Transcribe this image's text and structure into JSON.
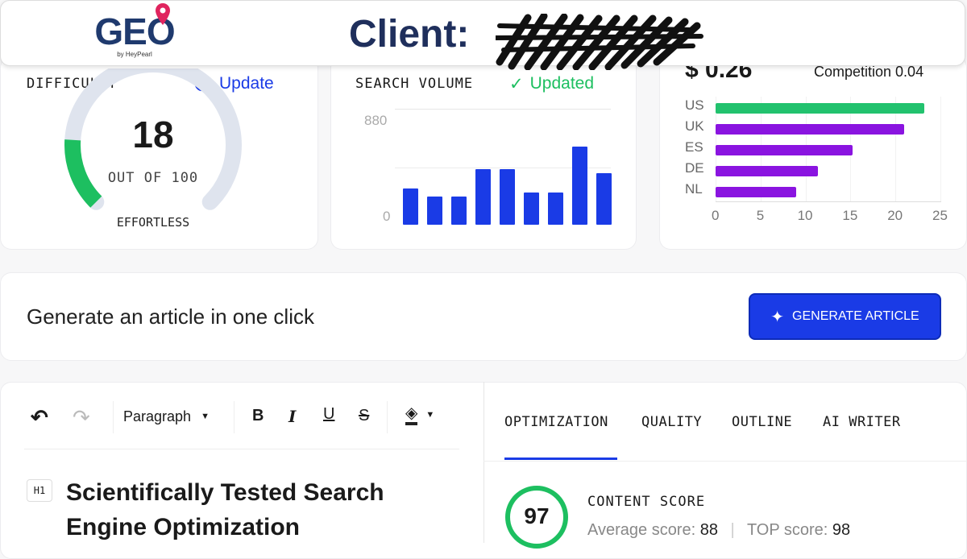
{
  "header": {
    "logo_text": "GEO",
    "logo_sub": "by HeyPearl",
    "client_label": "Client:"
  },
  "difficulty": {
    "label": "DIFFICULTY",
    "update_label": "Update",
    "value": "18",
    "out_of": "OUT OF 100",
    "rating": "EFFORTLESS",
    "fraction": 0.18,
    "color": "#1dbf60"
  },
  "search_volume": {
    "label": "SEARCH VOLUME",
    "status": "Updated",
    "y_max_label": "880",
    "y_min_label": "0",
    "chart_data": {
      "type": "bar",
      "ylim": [
        0,
        880
      ],
      "values": [
        307,
        239,
        239,
        471,
        471,
        273,
        273,
        662,
        437
      ],
      "color": "#1a3be6"
    }
  },
  "cpc": {
    "price": "$ 0.26",
    "competition": "Competition 0.04",
    "chart_data": {
      "type": "bar",
      "orientation": "horizontal",
      "categories": [
        "US",
        "UK",
        "ES",
        "DE",
        "NL"
      ],
      "values": [
        23.2,
        21,
        15.2,
        11.4,
        9
      ],
      "xlim": [
        0,
        25
      ],
      "x_ticks": [
        "0",
        "5",
        "10",
        "15",
        "20",
        "25"
      ],
      "colors": [
        "#22c26e",
        "#8a14e0",
        "#8a14e0",
        "#8a14e0",
        "#8a14e0"
      ]
    }
  },
  "generate": {
    "text": "Generate an article in one click",
    "button": "GENERATE ARTICLE"
  },
  "editor": {
    "block_type": "Paragraph",
    "bold": "B",
    "italic": "I",
    "underline": "U",
    "strike": "S",
    "h1_tag": "H1",
    "title": "Scientifically Tested Search Engine Optimization"
  },
  "tabs": [
    {
      "label": "OPTIMIZATION",
      "active": true
    },
    {
      "label": "QUALITY"
    },
    {
      "label": "OUTLINE"
    },
    {
      "label": "AI WRITER"
    }
  ],
  "score": {
    "value": "97",
    "label": "CONTENT SCORE",
    "average_label": "Average score:",
    "average": "88",
    "top_label": "TOP score:",
    "top": "98"
  }
}
